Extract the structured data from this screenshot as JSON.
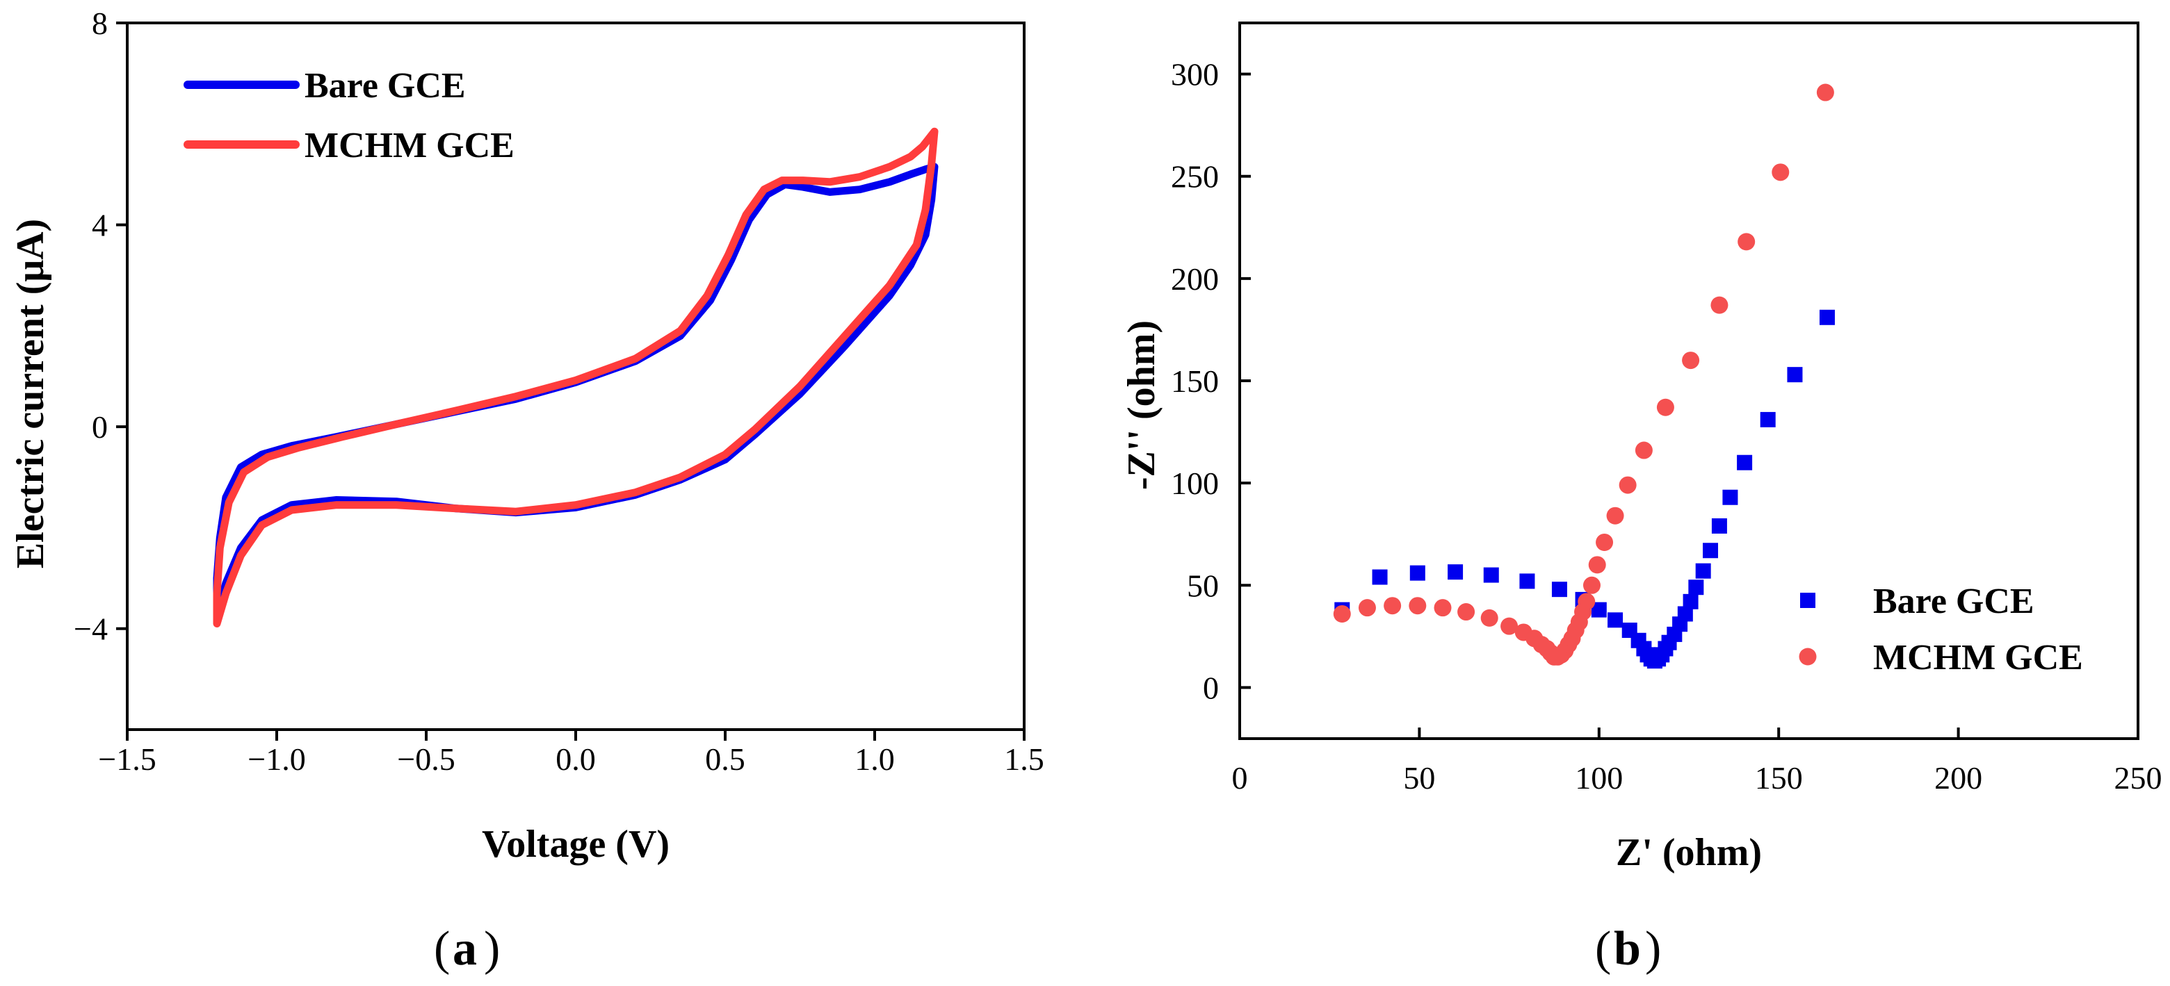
{
  "colors": {
    "bare": "#0000ee",
    "mchm": "#ff3c3c",
    "mchm_marker": "#f45050",
    "axis": "#000000"
  },
  "panels": {
    "a": "a",
    "b": "b"
  },
  "chart_data": [
    {
      "type": "line",
      "panel": "a",
      "title": "",
      "xlabel": "Voltage (V)",
      "ylabel": "Electric current (μA)",
      "xlim": [
        -1.5,
        1.5
      ],
      "ylim": [
        -6,
        8
      ],
      "xticks": [
        -1.5,
        -1.0,
        -0.5,
        0.0,
        0.5,
        1.0,
        1.5
      ],
      "xtick_labels": [
        "−1.5",
        "−1.0",
        "−0.5",
        "0.0",
        "0.5",
        "1.0",
        "1.5"
      ],
      "yticks": [
        -4,
        0,
        4,
        8
      ],
      "ytick_labels": [
        "−4",
        "0",
        "4",
        "8"
      ],
      "legend_position": "top-left",
      "series": [
        {
          "name": "Bare GCE",
          "color_key": "bare",
          "points": [
            [
              -1.2,
              -3.0
            ],
            [
              -1.19,
              -2.2
            ],
            [
              -1.17,
              -1.4
            ],
            [
              -1.12,
              -0.8
            ],
            [
              -1.05,
              -0.55
            ],
            [
              -0.95,
              -0.38
            ],
            [
              -0.8,
              -0.2
            ],
            [
              -0.6,
              0.05
            ],
            [
              -0.4,
              0.3
            ],
            [
              -0.2,
              0.55
            ],
            [
              0.0,
              0.88
            ],
            [
              0.2,
              1.3
            ],
            [
              0.35,
              1.8
            ],
            [
              0.45,
              2.5
            ],
            [
              0.52,
              3.3
            ],
            [
              0.58,
              4.1
            ],
            [
              0.64,
              4.6
            ],
            [
              0.7,
              4.8
            ],
            [
              0.76,
              4.75
            ],
            [
              0.85,
              4.65
            ],
            [
              0.95,
              4.7
            ],
            [
              1.05,
              4.85
            ],
            [
              1.12,
              5.0
            ],
            [
              1.17,
              5.1
            ],
            [
              1.2,
              5.15
            ],
            [
              1.19,
              4.5
            ],
            [
              1.17,
              3.8
            ],
            [
              1.12,
              3.2
            ],
            [
              1.05,
              2.6
            ],
            [
              0.9,
              1.6
            ],
            [
              0.75,
              0.65
            ],
            [
              0.6,
              -0.15
            ],
            [
              0.5,
              -0.65
            ],
            [
              0.35,
              -1.05
            ],
            [
              0.2,
              -1.35
            ],
            [
              0.0,
              -1.6
            ],
            [
              -0.2,
              -1.7
            ],
            [
              -0.4,
              -1.62
            ],
            [
              -0.6,
              -1.48
            ],
            [
              -0.8,
              -1.45
            ],
            [
              -0.95,
              -1.55
            ],
            [
              -1.05,
              -1.85
            ],
            [
              -1.12,
              -2.4
            ],
            [
              -1.17,
              -3.1
            ],
            [
              -1.2,
              -3.75
            ],
            [
              -1.2,
              -3.0
            ]
          ]
        },
        {
          "name": "MCHM GCE",
          "color_key": "mchm",
          "points": [
            [
              -1.2,
              -3.3
            ],
            [
              -1.19,
              -2.4
            ],
            [
              -1.16,
              -1.5
            ],
            [
              -1.11,
              -0.9
            ],
            [
              -1.03,
              -0.6
            ],
            [
              -0.93,
              -0.42
            ],
            [
              -0.78,
              -0.2
            ],
            [
              -0.6,
              0.05
            ],
            [
              -0.4,
              0.32
            ],
            [
              -0.2,
              0.6
            ],
            [
              0.0,
              0.92
            ],
            [
              0.2,
              1.35
            ],
            [
              0.35,
              1.9
            ],
            [
              0.44,
              2.6
            ],
            [
              0.51,
              3.4
            ],
            [
              0.57,
              4.2
            ],
            [
              0.63,
              4.7
            ],
            [
              0.69,
              4.88
            ],
            [
              0.76,
              4.88
            ],
            [
              0.85,
              4.85
            ],
            [
              0.95,
              4.95
            ],
            [
              1.05,
              5.15
            ],
            [
              1.12,
              5.35
            ],
            [
              1.16,
              5.55
            ],
            [
              1.2,
              5.85
            ],
            [
              1.19,
              5.2
            ],
            [
              1.17,
              4.3
            ],
            [
              1.14,
              3.6
            ],
            [
              1.05,
              2.8
            ],
            [
              0.9,
              1.8
            ],
            [
              0.75,
              0.8
            ],
            [
              0.6,
              -0.05
            ],
            [
              0.5,
              -0.55
            ],
            [
              0.35,
              -1.0
            ],
            [
              0.2,
              -1.3
            ],
            [
              0.0,
              -1.55
            ],
            [
              -0.2,
              -1.68
            ],
            [
              -0.4,
              -1.62
            ],
            [
              -0.6,
              -1.55
            ],
            [
              -0.8,
              -1.55
            ],
            [
              -0.95,
              -1.65
            ],
            [
              -1.05,
              -1.95
            ],
            [
              -1.12,
              -2.55
            ],
            [
              -1.17,
              -3.3
            ],
            [
              -1.2,
              -3.9
            ],
            [
              -1.2,
              -3.3
            ]
          ]
        }
      ]
    },
    {
      "type": "scatter",
      "panel": "b",
      "title": "",
      "xlabel": "Z' (ohm)",
      "ylabel": "-Z'' (ohm)",
      "xlim": [
        0,
        250
      ],
      "ylim": [
        -25,
        325
      ],
      "xticks": [
        0,
        50,
        100,
        150,
        200,
        250
      ],
      "yticks": [
        0,
        50,
        100,
        150,
        200,
        250,
        300
      ],
      "legend_position": "bottom-right",
      "series": [
        {
          "name": "Bare GCE",
          "marker": "square",
          "color_key": "bare",
          "points": [
            [
              28.5,
              38
            ],
            [
              39,
              54
            ],
            [
              49.5,
              56
            ],
            [
              60,
              56.5
            ],
            [
              70,
              55
            ],
            [
              80,
              52
            ],
            [
              89,
              48
            ],
            [
              95.5,
              43
            ],
            [
              100,
              38
            ],
            [
              104.5,
              33
            ],
            [
              108.5,
              28
            ],
            [
              111,
              23
            ],
            [
              112.5,
              19
            ],
            [
              113.5,
              16
            ],
            [
              114.5,
              14
            ],
            [
              115.5,
              13
            ],
            [
              116.5,
              14
            ],
            [
              117.5,
              16
            ],
            [
              118.5,
              19
            ],
            [
              119.5,
              22
            ],
            [
              121,
              26
            ],
            [
              122.5,
              31
            ],
            [
              124,
              36
            ],
            [
              125.5,
              42
            ],
            [
              127,
              49
            ],
            [
              129,
              57
            ],
            [
              131,
              67
            ],
            [
              133.5,
              79
            ],
            [
              136.5,
              93
            ],
            [
              140.5,
              110
            ],
            [
              147,
              131
            ],
            [
              154.5,
              153
            ],
            [
              163.5,
              181
            ]
          ]
        },
        {
          "name": "MCHM GCE",
          "marker": "circle",
          "color_key": "mchm_marker",
          "points": [
            [
              28.5,
              36
            ],
            [
              35.5,
              39
            ],
            [
              42.5,
              40
            ],
            [
              49.5,
              40
            ],
            [
              56.5,
              39
            ],
            [
              63,
              37
            ],
            [
              69.5,
              34
            ],
            [
              75,
              30
            ],
            [
              79,
              27
            ],
            [
              82,
              24
            ],
            [
              84,
              21
            ],
            [
              85.5,
              19
            ],
            [
              86.5,
              17
            ],
            [
              87.5,
              15
            ],
            [
              88.5,
              15
            ],
            [
              89.5,
              16
            ],
            [
              90.5,
              18
            ],
            [
              91.5,
              21
            ],
            [
              92.5,
              24
            ],
            [
              93.5,
              28
            ],
            [
              94.5,
              32
            ],
            [
              95.5,
              37
            ],
            [
              96.5,
              42
            ],
            [
              98,
              50
            ],
            [
              99.5,
              60
            ],
            [
              101.5,
              71
            ],
            [
              104.5,
              84
            ],
            [
              108,
              99
            ],
            [
              112.5,
              116
            ],
            [
              118.5,
              137
            ],
            [
              125.5,
              160
            ],
            [
              133.5,
              187
            ],
            [
              141,
              218
            ],
            [
              150.5,
              252
            ],
            [
              163,
              291
            ]
          ]
        }
      ]
    }
  ]
}
